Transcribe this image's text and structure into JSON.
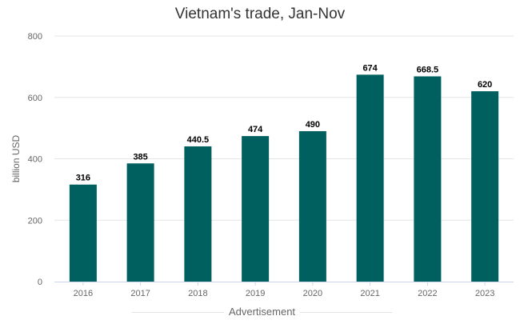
{
  "chart_data": {
    "type": "bar",
    "title": "Vietnam's trade, Jan-Nov",
    "xlabel": "",
    "ylabel": "billion USD",
    "categories": [
      "2016",
      "2017",
      "2018",
      "2019",
      "2020",
      "2021",
      "2022",
      "2023"
    ],
    "values": [
      316,
      385,
      440.5,
      474,
      490,
      674,
      668.5,
      620
    ],
    "value_labels": [
      "316",
      "385",
      "440.5",
      "474",
      "490",
      "674",
      "668.5",
      "620"
    ],
    "ylim": [
      0,
      800
    ],
    "yticks": [
      0,
      200,
      400,
      600,
      800
    ],
    "grid": true,
    "legend": "none",
    "bar_color": "#005f5f"
  },
  "footer": {
    "ad_label": "Advertisement"
  }
}
